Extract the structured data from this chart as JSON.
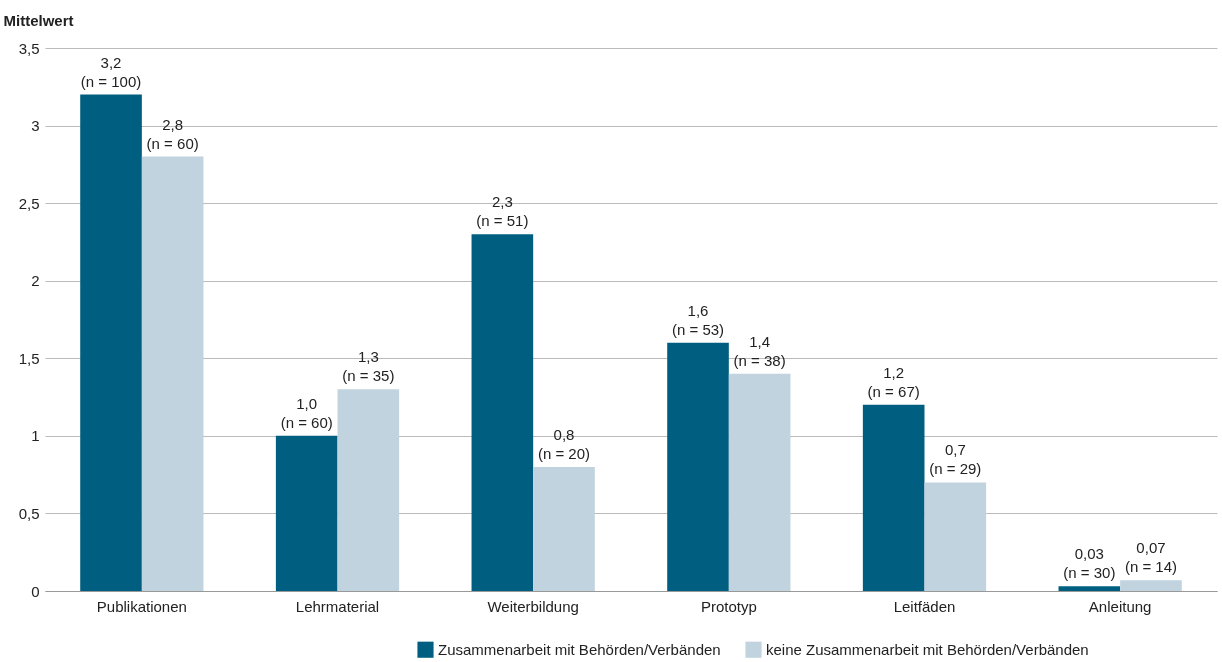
{
  "chart_data": {
    "type": "bar",
    "ylabel": "Mittelwert",
    "categories": [
      "Publikationen",
      "Lehrmaterial",
      "Weiterbildung",
      "Prototyp",
      "Leitfäden",
      "Anleitung"
    ],
    "series": [
      {
        "name": "Zusammenarbeit mit Behörden/Verbänden",
        "color": "#005f80",
        "values": [
          3.2,
          1.0,
          2.3,
          1.6,
          1.2,
          0.03
        ],
        "value_labels": [
          "3,2\n(n = 100)",
          "1,0\n(n = 60)",
          "2,3\n(n = 51)",
          "1,6\n(n = 53)",
          "1,2\n(n = 67)",
          "0,03\n(n = 30)"
        ]
      },
      {
        "name": "keine Zusammenarbeit mit Behörden/Verbänden",
        "color": "#c1d3df",
        "values": [
          2.8,
          1.3,
          0.8,
          1.4,
          0.7,
          0.07
        ],
        "value_labels": [
          "2,8\n(n = 60)",
          "1,3\n(n = 35)",
          "0,8\n(n = 20)",
          "1,4\n(n = 38)",
          "0,7\n(n = 29)",
          "0,07\n(n = 14)"
        ]
      }
    ],
    "ylim": [
      0,
      3.5
    ],
    "yticks": [
      0,
      {
        "value": 0.5,
        "label": "0,5"
      },
      1,
      {
        "value": 1.5,
        "label": "1,5"
      },
      2,
      {
        "value": 2.5,
        "label": "2,5"
      },
      3,
      {
        "value": 3.5,
        "label": "3,5"
      }
    ],
    "grid": "y",
    "legend": "bottom right"
  }
}
